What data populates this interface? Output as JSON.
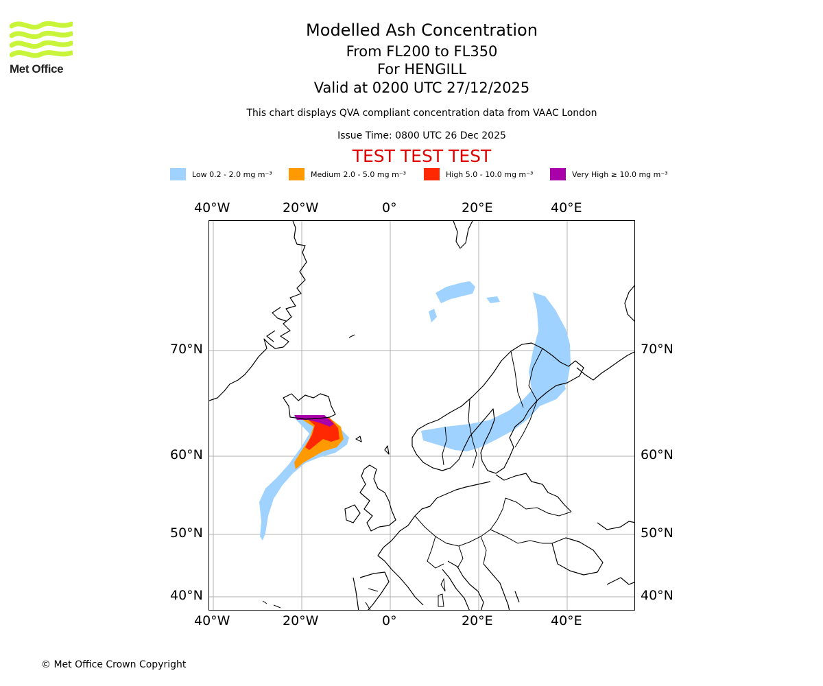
{
  "logo": {
    "text": "Met Office",
    "icon": "met-office-wave-logo",
    "color": "#c8f53a"
  },
  "title": {
    "main": "Modelled Ash Concentration",
    "levels": "From FL200 to FL350",
    "volcano": "For HENGILL",
    "valid": "Valid at 0200 UTC 27/12/2025",
    "note": "This chart displays QVA compliant concentration data from VAAC London",
    "issue": "Issue Time: 0800 UTC 26 Dec 2025",
    "test": "TEST TEST TEST"
  },
  "legend": [
    {
      "label": "Low 0.2 - 2.0 mg m⁻³",
      "color": "#a0d2ff"
    },
    {
      "label": "Medium 2.0 - 5.0 mg m⁻³",
      "color": "#ff9900"
    },
    {
      "label": "High 5.0 - 10.0 mg m⁻³",
      "color": "#ff2800"
    },
    {
      "label": "Very High ≥ 10.0 mg m⁻³",
      "color": "#aa00aa"
    }
  ],
  "map": {
    "lon_labels": [
      "40°W",
      "20°W",
      "0°",
      "20°E",
      "40°E"
    ],
    "lat_labels": [
      "70°N",
      "60°N",
      "50°N",
      "40°N"
    ],
    "grid": true,
    "coastline_color": "#000000",
    "grid_color": "#b0b0b0"
  },
  "copyright": "© Met Office Crown Copyright"
}
